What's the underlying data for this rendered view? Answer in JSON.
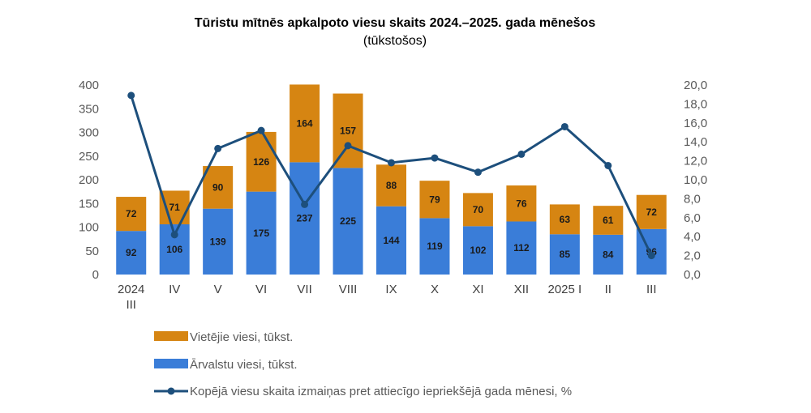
{
  "chart_data": {
    "type": "bar",
    "title": "Tūristu mītnēs apkalpoto viesu skaits 2024.–2025. gada mēnešos",
    "subtitle": "(tūkstošos)",
    "categories": [
      [
        "2024",
        "III"
      ],
      [
        "IV"
      ],
      [
        "V"
      ],
      [
        "VI"
      ],
      [
        "VII"
      ],
      [
        "VIII"
      ],
      [
        "IX"
      ],
      [
        "X"
      ],
      [
        "XI"
      ],
      [
        "XII"
      ],
      [
        "2025 I"
      ],
      [
        "II"
      ],
      [
        "III"
      ]
    ],
    "series": [
      {
        "name": "Ārvalstu viesi, tūkst.",
        "type": "bar",
        "stack": "guests",
        "axis": "left",
        "color": "#3a7dd8",
        "values": [
          92,
          106,
          139,
          175,
          237,
          225,
          144,
          119,
          102,
          112,
          85,
          84,
          96
        ]
      },
      {
        "name": "Vietējie viesi, tūkst.",
        "type": "bar",
        "stack": "guests",
        "axis": "left",
        "color": "#d68512",
        "values": [
          72,
          71,
          90,
          126,
          164,
          157,
          88,
          79,
          70,
          76,
          63,
          61,
          72
        ]
      },
      {
        "name": "Kopējā viesu skaita izmaiņas pret attiecīgo iepriekšējā gada mēnesi, %",
        "type": "line",
        "axis": "right",
        "color": "#1d4f7c",
        "values": [
          18.9,
          4.2,
          13.3,
          15.2,
          7.4,
          13.6,
          11.8,
          12.3,
          10.8,
          12.7,
          15.6,
          11.5,
          2.0
        ]
      }
    ],
    "y_left": {
      "min": 0,
      "max": 400,
      "step": 50,
      "tick_labels": [
        "0",
        "50",
        "100",
        "150",
        "200",
        "250",
        "300",
        "350",
        "400"
      ]
    },
    "y_right": {
      "min": 0,
      "max": 20,
      "step": 2,
      "tick_labels": [
        "0,0",
        "2,0",
        "4,0",
        "6,0",
        "8,0",
        "10,0",
        "12,0",
        "14,0",
        "16,0",
        "18,0",
        "20,0"
      ]
    },
    "grid": false,
    "legend_position": "bottom-left"
  },
  "legend": [
    {
      "label": "Vietējie viesi, tūkst.",
      "kind": "bar",
      "color": "#d68512"
    },
    {
      "label": "Ārvalstu viesi, tūkst.",
      "kind": "bar",
      "color": "#3a7dd8"
    },
    {
      "label": "Kopējā viesu skaita izmaiņas pret attiecīgo iepriekšējā gada mēnesi, %",
      "kind": "line",
      "color": "#1d4f7c"
    }
  ]
}
